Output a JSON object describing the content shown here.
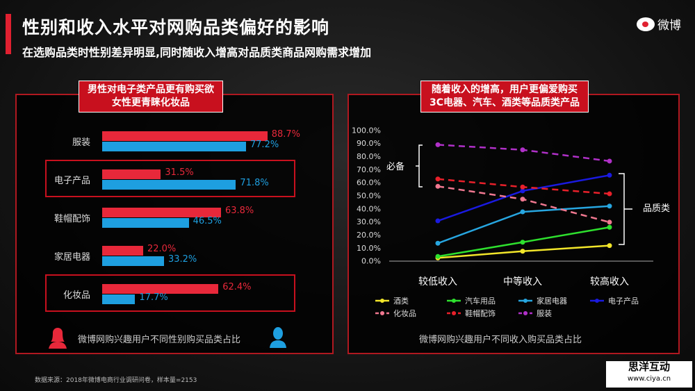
{
  "header": {
    "title": "性别和收入水平对网购品类偏好的影响",
    "subtitle": "在选购品类时性别差异明显,同时随收入增高对品质类商品网购需求增加",
    "logo": "微博"
  },
  "left": {
    "tag_line1": "男性对电子类产品更有购买欲",
    "tag_line2": "女性更青睐化妆品",
    "footer": "微博网购兴趣用户不同性别购买品类占比"
  },
  "right": {
    "tag_line1": "随着收入的增高，用户更偏爱购买",
    "tag_line2": "3C电器、汽车、酒类等品质类产品",
    "footer": "微博网购兴趣用户不同收入购买品类占比",
    "bracket_essential": "必备",
    "bracket_quality": "品质类"
  },
  "source": "数据来源：2018年微博电商行业调研问卷，样本量=2153",
  "watermark": {
    "name": "思洋互动",
    "url": "www.ciya.cn"
  },
  "colors": {
    "female": "#e8283a",
    "male": "#1e9fe0",
    "accent": "#c8101e"
  },
  "chart_data": [
    {
      "type": "bar",
      "orientation": "horizontal",
      "categories": [
        "服装",
        "电子产品",
        "鞋帽配饰",
        "家居电器",
        "化妆品"
      ],
      "series": [
        {
          "name": "女性",
          "color": "#e8283a",
          "values": [
            88.7,
            31.5,
            63.8,
            22.0,
            62.4
          ],
          "labels": [
            "88.7%",
            "31.5%",
            "63.8%",
            "22.0%",
            "62.4%"
          ]
        },
        {
          "name": "男性",
          "color": "#1e9fe0",
          "values": [
            77.2,
            71.8,
            46.5,
            33.2,
            17.7
          ],
          "labels": [
            "77.2%",
            "71.8%",
            "46.5%",
            "33.2%",
            "17.7%"
          ]
        }
      ],
      "highlighted": [
        "电子产品",
        "化妆品"
      ]
    },
    {
      "type": "line",
      "categories": [
        "较低收入",
        "中等收入",
        "较高收入"
      ],
      "ylim": [
        0,
        100
      ],
      "yticks": [
        "0.0%",
        "10.0%",
        "20.0%",
        "30.0%",
        "40.0%",
        "50.0%",
        "60.0%",
        "70.0%",
        "80.0%",
        "90.0%",
        "100.0%"
      ],
      "series": [
        {
          "name": "酒类",
          "color": "#f2e62a",
          "dash": false,
          "values": [
            2.3,
            7.4,
            11.7
          ]
        },
        {
          "name": "汽车用品",
          "color": "#2ee02e",
          "dash": false,
          "values": [
            3.4,
            14.3,
            25.7
          ]
        },
        {
          "name": "家居电器",
          "color": "#27a6e0",
          "dash": false,
          "values": [
            13.5,
            37.5,
            41.9
          ]
        },
        {
          "name": "电子产品",
          "color": "#1a1ae0",
          "dash": false,
          "values": [
            30.6,
            53.5,
            65.5
          ]
        },
        {
          "name": "化妆品",
          "color": "#f07890",
          "dash": true,
          "values": [
            57.0,
            47.2,
            29.6
          ]
        },
        {
          "name": "鞋帽配饰",
          "color": "#e8202a",
          "dash": true,
          "values": [
            62.6,
            56.5,
            51.3
          ]
        },
        {
          "name": "服装",
          "color": "#b030c8",
          "dash": true,
          "values": [
            88.8,
            84.9,
            76.3
          ]
        }
      ],
      "legend": "bottom"
    }
  ]
}
